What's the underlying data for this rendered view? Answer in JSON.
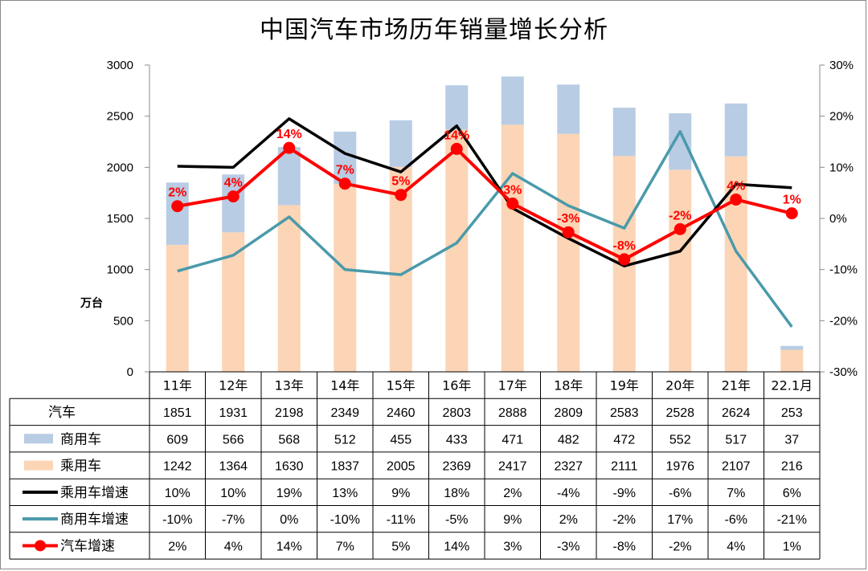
{
  "chart_data": {
    "type": "bar+line",
    "title": "中国汽车市场历年销量增长分析",
    "ylabel": "万台",
    "categories": [
      "11年",
      "12年",
      "13年",
      "14年",
      "15年",
      "16年",
      "17年",
      "18年",
      "19年",
      "20年",
      "21年",
      "22.1月"
    ],
    "ylim": [
      0,
      3000
    ],
    "y_ticks": [
      "0",
      "500",
      "1000",
      "1500",
      "2000",
      "2500",
      "3000"
    ],
    "y2lim": [
      -30,
      30
    ],
    "y2_ticks": [
      "-30%",
      "-20%",
      "-10%",
      "0%",
      "10%",
      "20%",
      "30%"
    ],
    "stacked_bars": true,
    "grid": false,
    "legend": "table-below",
    "colors": {
      "commercial": "#b8cce4",
      "passenger": "#fbd5b5",
      "passenger_growth": "#000000",
      "commercial_growth": "#4a9aaa",
      "total_growth": "#ff0000"
    },
    "table_rows": [
      {
        "key": "total",
        "name": "汽车",
        "legend": "none",
        "values": [
          "1851",
          "1931",
          "2198",
          "2349",
          "2460",
          "2803",
          "2888",
          "2809",
          "2583",
          "2528",
          "2624",
          "253"
        ]
      },
      {
        "key": "commercial",
        "name": "商用车",
        "legend": "bar-commercial",
        "values": [
          "609",
          "566",
          "568",
          "512",
          "455",
          "433",
          "471",
          "482",
          "472",
          "552",
          "517",
          "37"
        ]
      },
      {
        "key": "passenger",
        "name": "乘用车",
        "legend": "bar-passenger",
        "values": [
          "1242",
          "1364",
          "1630",
          "1837",
          "2005",
          "2369",
          "2417",
          "2327",
          "2111",
          "1976",
          "2107",
          "216"
        ]
      },
      {
        "key": "passenger_growth",
        "name": "乘用车增速",
        "legend": "line-black",
        "values": [
          "10%",
          "10%",
          "19%",
          "13%",
          "9%",
          "18%",
          "2%",
          "-4%",
          "-9%",
          "-6%",
          "7%",
          "6%"
        ]
      },
      {
        "key": "commercial_growth",
        "name": "商用车增速",
        "legend": "line-teal",
        "values": [
          "-10%",
          "-7%",
          "0%",
          "-10%",
          "-11%",
          "-5%",
          "9%",
          "2%",
          "-2%",
          "17%",
          "-6%",
          "-21%"
        ]
      },
      {
        "key": "total_growth",
        "name": "汽车增速",
        "legend": "line-red-marker",
        "values": [
          "2%",
          "4%",
          "14%",
          "7%",
          "5%",
          "14%",
          "3%",
          "-3%",
          "-8%",
          "-2%",
          "4%",
          "1%"
        ]
      }
    ],
    "bars": {
      "commercial": [
        609,
        566,
        568,
        512,
        455,
        433,
        471,
        482,
        472,
        552,
        517,
        37
      ],
      "passenger": [
        1242,
        1364,
        1630,
        1837,
        2005,
        2369,
        2417,
        2327,
        2111,
        1976,
        2107,
        216
      ]
    },
    "lines": {
      "passenger_growth": [
        10.2,
        10.0,
        19.5,
        12.7,
        9.1,
        18.1,
        2.0,
        -3.9,
        -9.3,
        -6.4,
        6.7,
        6.0
      ],
      "commercial_growth": [
        -10.3,
        -7.2,
        0.3,
        -10.0,
        -11.0,
        -4.8,
        8.8,
        2.5,
        -1.9,
        17.0,
        -6.4,
        -21.2
      ],
      "total_growth": [
        2.4,
        4.3,
        13.8,
        6.8,
        4.6,
        13.6,
        2.9,
        -2.7,
        -8.0,
        -2.1,
        3.7,
        1.0
      ]
    },
    "data_labels": [
      "2%",
      "4%",
      "14%",
      "7%",
      "5%",
      "14%",
      "3%",
      "-3%",
      "-8%",
      "-2%",
      "4%",
      "1%"
    ]
  }
}
